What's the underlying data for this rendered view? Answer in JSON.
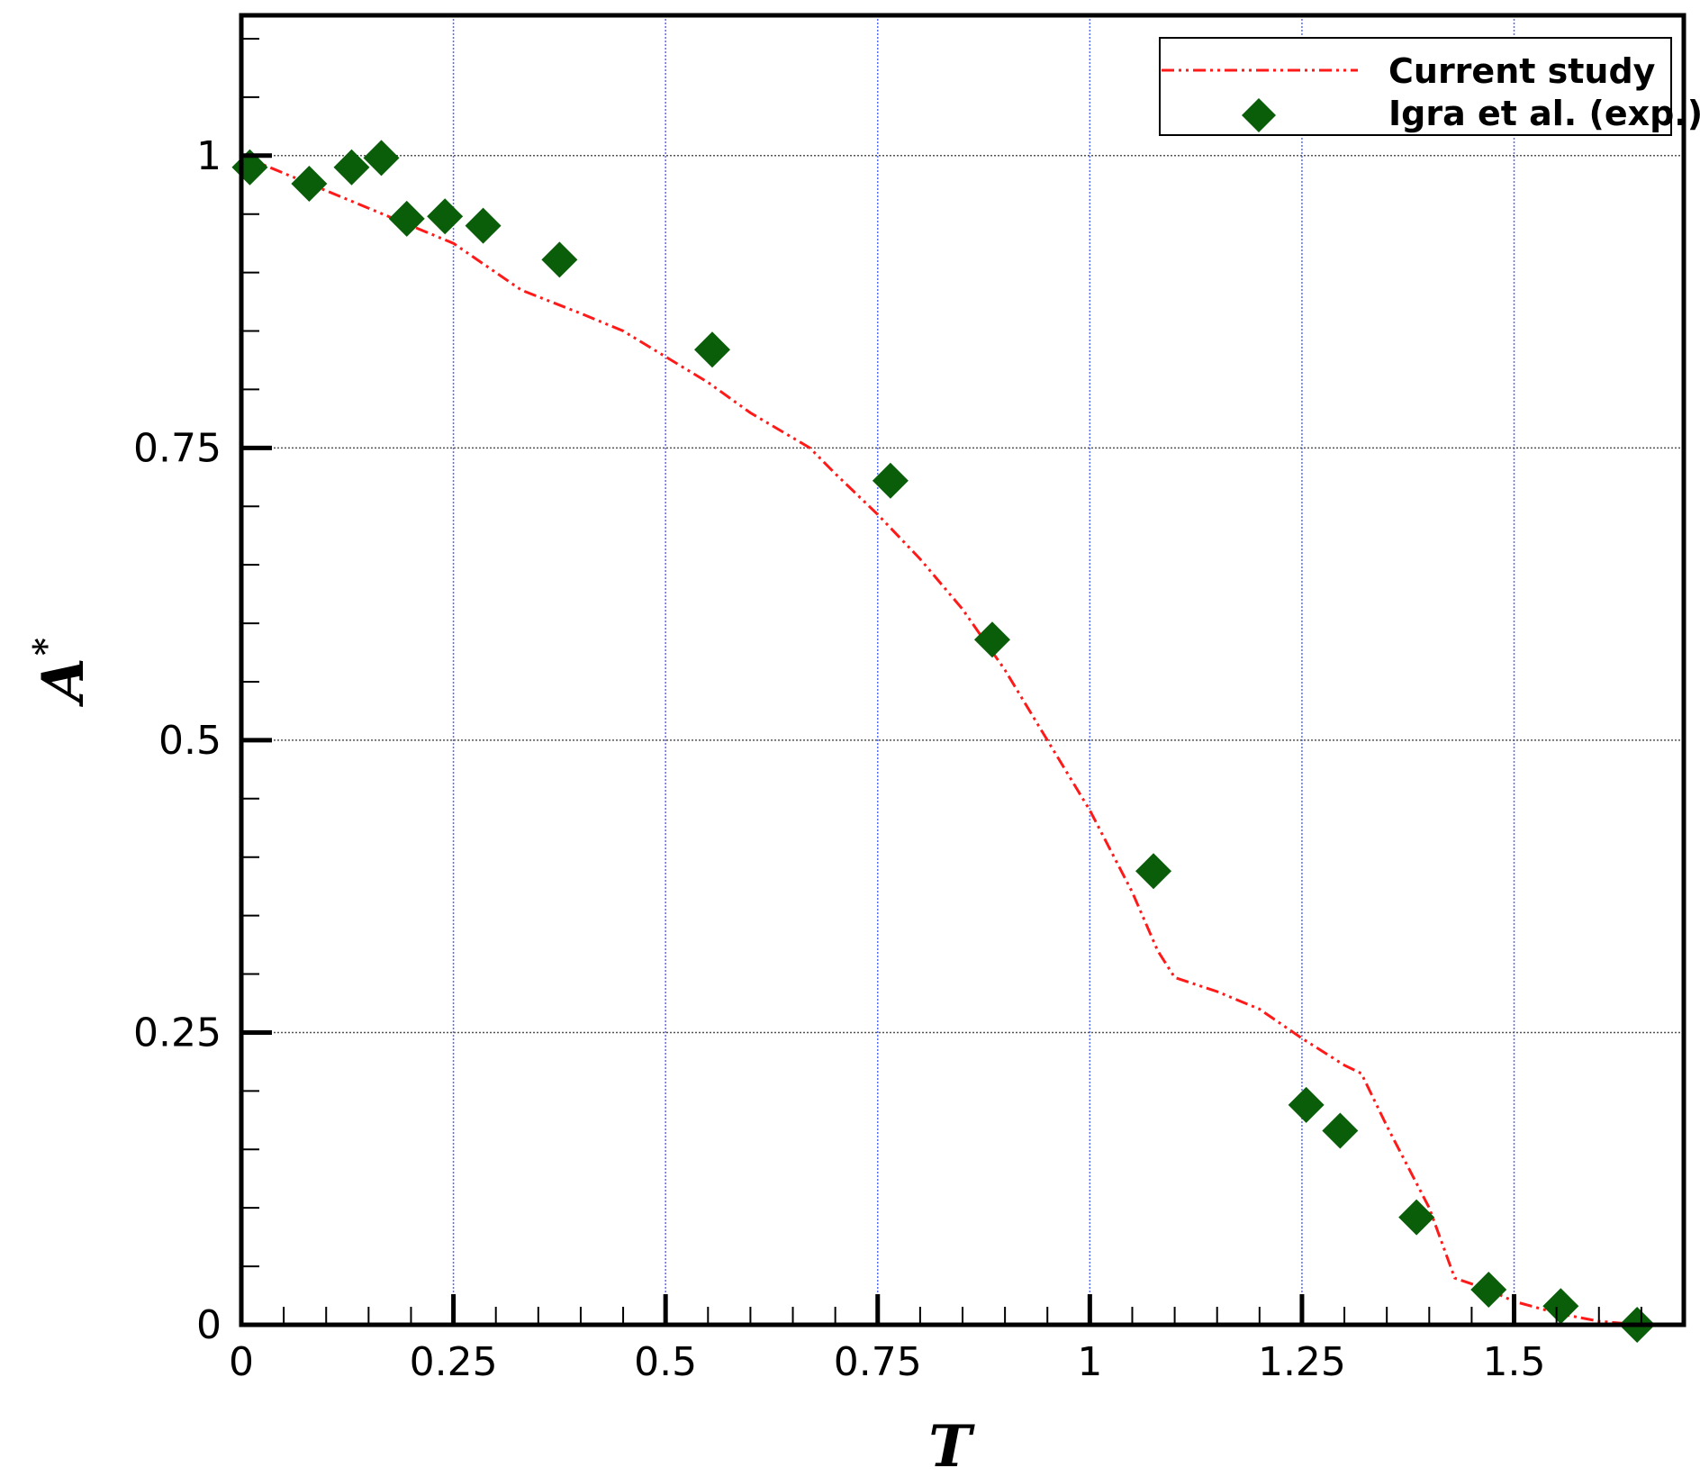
{
  "chart_data": {
    "type": "scatter",
    "xlabel": "T",
    "ylabel": "A",
    "ylabel_superscript": "*",
    "xlim": [
      0,
      1.7
    ],
    "ylim": [
      0,
      1.12
    ],
    "x_ticks": [
      0,
      0.25,
      0.5,
      0.75,
      1,
      1.25,
      1.5
    ],
    "x_tick_labels": [
      "0",
      "0.25",
      "0.5",
      "0.75",
      "1",
      "1.25",
      "1.5"
    ],
    "y_ticks": [
      0,
      0.25,
      0.5,
      0.75,
      1
    ],
    "y_tick_labels": [
      "0",
      "0.25",
      "0.5",
      "0.75",
      "1"
    ],
    "grid": true,
    "legend_position": "top-right",
    "colors": {
      "line": "#ff1a1a",
      "marker": "#0a5e0a",
      "x_grid": "#5a6cf0",
      "y_grid": "#555555"
    },
    "series": [
      {
        "name": "Current study",
        "kind": "line",
        "x": [
          0,
          0.05,
          0.1,
          0.15,
          0.2,
          0.25,
          0.3,
          0.33,
          0.4,
          0.45,
          0.5,
          0.55,
          0.6,
          0.67,
          0.7,
          0.75,
          0.8,
          0.85,
          0.9,
          0.95,
          1.0,
          1.05,
          1.08,
          1.1,
          1.15,
          1.2,
          1.25,
          1.3,
          1.32,
          1.35,
          1.4,
          1.43,
          1.47,
          1.5,
          1.55,
          1.6,
          1.65
        ],
        "y": [
          1.0,
          0.985,
          0.97,
          0.955,
          0.94,
          0.925,
          0.9,
          0.885,
          0.865,
          0.85,
          0.828,
          0.806,
          0.78,
          0.75,
          0.728,
          0.693,
          0.655,
          0.612,
          0.56,
          0.5,
          0.44,
          0.37,
          0.32,
          0.297,
          0.285,
          0.27,
          0.245,
          0.222,
          0.215,
          0.17,
          0.1,
          0.04,
          0.03,
          0.02,
          0.01,
          0.003,
          0.0
        ]
      },
      {
        "name": "Igra et al. (exp.)",
        "kind": "scatter",
        "x": [
          0.01,
          0.08,
          0.13,
          0.165,
          0.195,
          0.24,
          0.285,
          0.375,
          0.555,
          0.765,
          0.885,
          1.075,
          1.255,
          1.295,
          1.385,
          1.47,
          1.555,
          1.645
        ],
        "y": [
          0.99,
          0.976,
          0.99,
          0.998,
          0.946,
          0.948,
          0.94,
          0.911,
          0.834,
          0.722,
          0.586,
          0.388,
          0.188,
          0.166,
          0.092,
          0.03,
          0.016,
          0.0
        ]
      }
    ]
  }
}
